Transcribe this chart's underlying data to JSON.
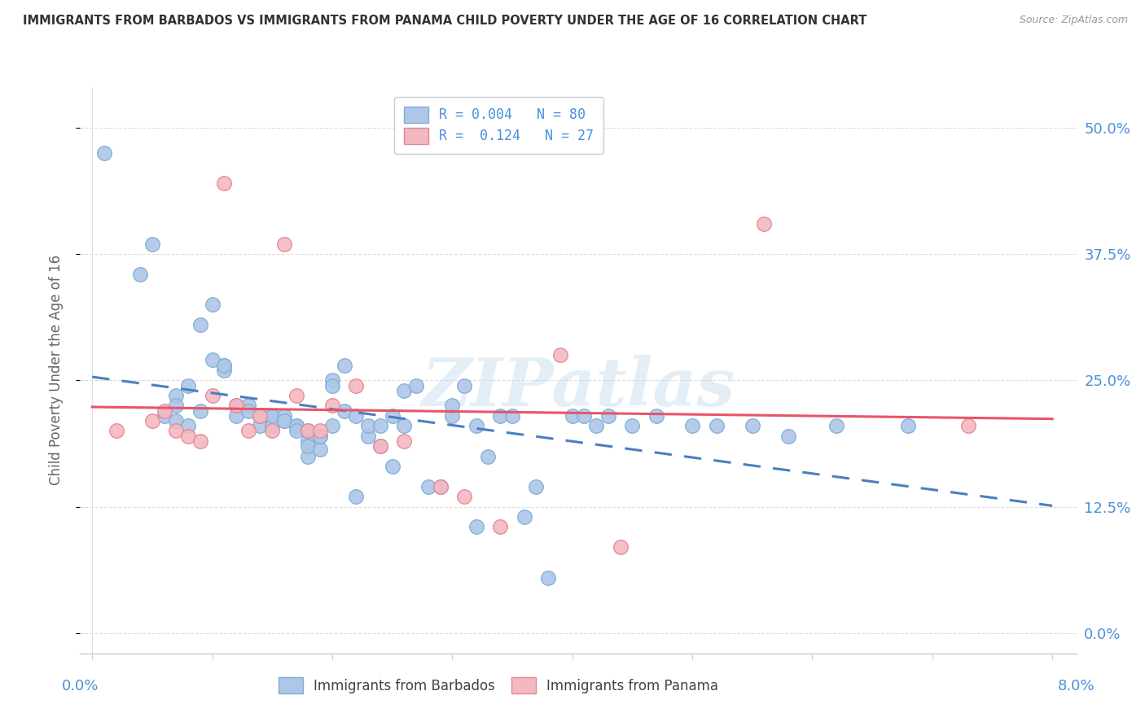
{
  "title": "IMMIGRANTS FROM BARBADOS VS IMMIGRANTS FROM PANAMA CHILD POVERTY UNDER THE AGE OF 16 CORRELATION CHART",
  "source": "Source: ZipAtlas.com",
  "ylabel": "Child Poverty Under the Age of 16",
  "yticks_labels": [
    "0.0%",
    "12.5%",
    "25.0%",
    "37.5%",
    "50.0%"
  ],
  "ytick_vals": [
    0.0,
    0.125,
    0.25,
    0.375,
    0.5
  ],
  "xtick_vals": [
    0.0,
    0.01,
    0.02,
    0.03,
    0.04,
    0.05,
    0.06,
    0.07,
    0.08
  ],
  "xlim": [
    -0.001,
    0.082
  ],
  "ylim": [
    -0.02,
    0.54
  ],
  "legend_line1": "R = 0.004   N = 80",
  "legend_line2": "R =  0.124   N = 27",
  "watermark": "ZIPatlas",
  "barbados_color": "#aec6e8",
  "barbados_edge": "#7bafd4",
  "panama_color": "#f4b8c1",
  "panama_edge": "#e8848f",
  "trend_barbados_color": "#4a7fc1",
  "trend_panama_color": "#e8546a",
  "legend_text_color": "#4a90d9",
  "axis_label_color": "#4a90d9",
  "ylabel_color": "#666666",
  "title_color": "#333333",
  "source_color": "#999999",
  "grid_color": "#dddddd",
  "bottom_label_color": "#444444",
  "barbados_x": [
    0.001,
    0.004,
    0.005,
    0.006,
    0.007,
    0.007,
    0.007,
    0.008,
    0.008,
    0.009,
    0.009,
    0.01,
    0.01,
    0.011,
    0.011,
    0.011,
    0.012,
    0.012,
    0.013,
    0.013,
    0.014,
    0.014,
    0.014,
    0.015,
    0.015,
    0.015,
    0.016,
    0.016,
    0.016,
    0.017,
    0.017,
    0.017,
    0.018,
    0.018,
    0.018,
    0.018,
    0.019,
    0.019,
    0.019,
    0.02,
    0.02,
    0.02,
    0.021,
    0.021,
    0.022,
    0.022,
    0.023,
    0.023,
    0.024,
    0.024,
    0.025,
    0.025,
    0.026,
    0.026,
    0.027,
    0.028,
    0.029,
    0.03,
    0.03,
    0.031,
    0.032,
    0.032,
    0.033,
    0.034,
    0.035,
    0.036,
    0.037,
    0.038,
    0.04,
    0.041,
    0.042,
    0.043,
    0.045,
    0.047,
    0.05,
    0.052,
    0.055,
    0.058,
    0.062,
    0.068
  ],
  "barbados_y": [
    0.475,
    0.355,
    0.385,
    0.215,
    0.235,
    0.225,
    0.21,
    0.245,
    0.205,
    0.22,
    0.305,
    0.325,
    0.27,
    0.265,
    0.26,
    0.265,
    0.225,
    0.215,
    0.225,
    0.22,
    0.215,
    0.205,
    0.215,
    0.215,
    0.205,
    0.215,
    0.21,
    0.215,
    0.21,
    0.205,
    0.205,
    0.2,
    0.2,
    0.19,
    0.175,
    0.185,
    0.182,
    0.195,
    0.195,
    0.205,
    0.25,
    0.245,
    0.265,
    0.22,
    0.215,
    0.135,
    0.195,
    0.205,
    0.185,
    0.205,
    0.165,
    0.215,
    0.205,
    0.24,
    0.245,
    0.145,
    0.145,
    0.215,
    0.225,
    0.245,
    0.205,
    0.105,
    0.175,
    0.215,
    0.215,
    0.115,
    0.145,
    0.055,
    0.215,
    0.215,
    0.205,
    0.215,
    0.205,
    0.215,
    0.205,
    0.205,
    0.205,
    0.195,
    0.205,
    0.205
  ],
  "panama_x": [
    0.002,
    0.005,
    0.006,
    0.007,
    0.008,
    0.009,
    0.01,
    0.011,
    0.012,
    0.013,
    0.014,
    0.015,
    0.016,
    0.017,
    0.018,
    0.019,
    0.02,
    0.022,
    0.024,
    0.026,
    0.029,
    0.031,
    0.034,
    0.039,
    0.044,
    0.056,
    0.073
  ],
  "panama_y": [
    0.2,
    0.21,
    0.22,
    0.2,
    0.195,
    0.19,
    0.235,
    0.445,
    0.225,
    0.2,
    0.215,
    0.2,
    0.385,
    0.235,
    0.2,
    0.2,
    0.225,
    0.245,
    0.185,
    0.19,
    0.145,
    0.135,
    0.105,
    0.275,
    0.085,
    0.405,
    0.205
  ]
}
